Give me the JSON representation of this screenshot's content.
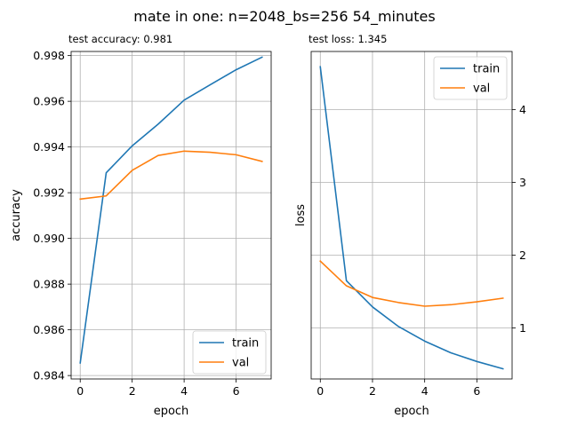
{
  "figure": {
    "title": "mate in one: n=2048_bs=256 54_minutes"
  },
  "colors": {
    "train": "#1f77b4",
    "val": "#ff7f0e"
  },
  "chart_data": [
    {
      "type": "line",
      "subtitle": "test accuracy: 0.981",
      "xlabel": "epoch",
      "ylabel": "accuracy",
      "xlim": [
        -0.35,
        7.35
      ],
      "ylim": [
        0.98385,
        0.99818
      ],
      "xticks": [
        0,
        2,
        4,
        6
      ],
      "xtick_labels": [
        "0",
        "2",
        "4",
        "6"
      ],
      "yticks": [
        0.984,
        0.986,
        0.988,
        0.99,
        0.992,
        0.994,
        0.996,
        0.998
      ],
      "ytick_labels": [
        "0.984",
        "0.986",
        "0.988",
        "0.990",
        "0.992",
        "0.994",
        "0.996",
        "0.998"
      ],
      "yaxis_side": "left",
      "grid": true,
      "legend": "lower right",
      "x": [
        0,
        1,
        2,
        3,
        4,
        5,
        6,
        7
      ],
      "series": [
        {
          "name": "train",
          "values": [
            0.98455,
            0.99287,
            0.99405,
            0.995,
            0.99605,
            0.99672,
            0.99738,
            0.99793
          ]
        },
        {
          "name": "val",
          "values": [
            0.99172,
            0.99186,
            0.99298,
            0.99363,
            0.99382,
            0.99377,
            0.99366,
            0.99337
          ]
        }
      ]
    },
    {
      "type": "line",
      "subtitle": "test loss: 1.345",
      "xlabel": "epoch",
      "ylabel": "loss",
      "xlim": [
        -0.35,
        7.35
      ],
      "ylim": [
        0.3,
        4.8
      ],
      "xticks": [
        0,
        2,
        4,
        6
      ],
      "xtick_labels": [
        "0",
        "2",
        "4",
        "6"
      ],
      "yticks": [
        1,
        2,
        3,
        4
      ],
      "ytick_labels": [
        "1",
        "2",
        "3",
        "4"
      ],
      "yaxis_side": "right",
      "grid": true,
      "legend": "upper right",
      "x": [
        0,
        1,
        2,
        3,
        4,
        5,
        6,
        7
      ],
      "series": [
        {
          "name": "train",
          "values": [
            4.59,
            1.65,
            1.29,
            1.02,
            0.82,
            0.66,
            0.54,
            0.44
          ]
        },
        {
          "name": "val",
          "values": [
            1.92,
            1.58,
            1.42,
            1.35,
            1.3,
            1.32,
            1.36,
            1.41
          ]
        }
      ]
    }
  ]
}
